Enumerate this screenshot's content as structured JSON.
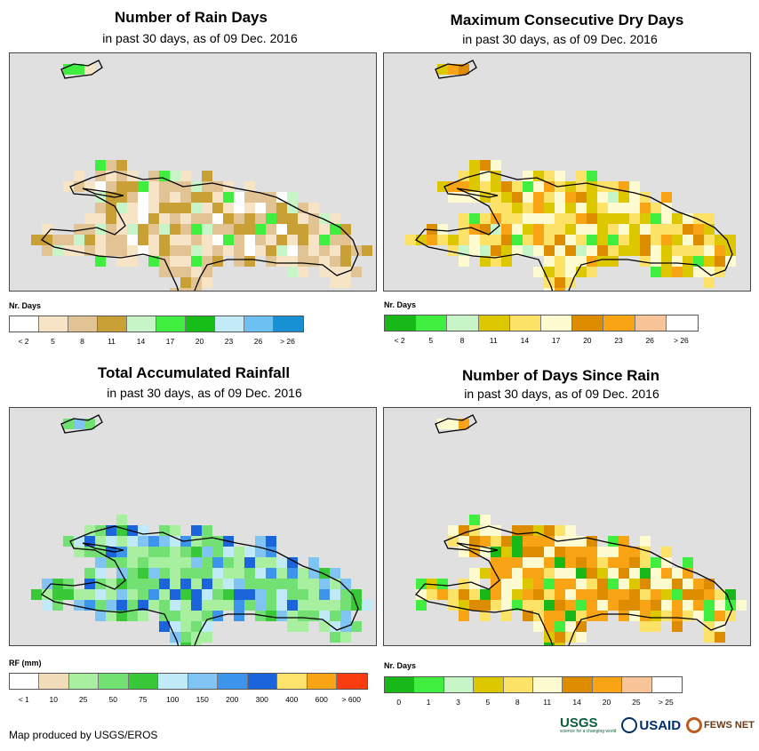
{
  "panels": [
    {
      "id": "rain-days",
      "title": "Number of Rain Days",
      "subtitle": "in past 30 days, as of 09 Dec. 2016",
      "legend_title": "Nr. Days",
      "legend_colors": [
        "#ffffff",
        "#f7e4c6",
        "#e2c494",
        "#c9a035",
        "#c8f5c8",
        "#40ee40",
        "#18be18",
        "#c4ecf8",
        "#6cc0f2",
        "#1890d4"
      ],
      "legend_ticks": [
        "< 2",
        "5",
        "8",
        "11",
        "14",
        "17",
        "20",
        "23",
        "26",
        "> 26"
      ]
    },
    {
      "id": "consecutive-dry-days",
      "title": "Maximum Consecutive Dry Days",
      "subtitle": "in past 30 days, as of 09 Dec. 2016",
      "legend_title": "Nr. Days",
      "legend_colors": [
        "#18b818",
        "#40ee40",
        "#c8f5c8",
        "#ddc800",
        "#fde268",
        "#fffbd0",
        "#dd8c00",
        "#f8a414",
        "#f8c498",
        "#ffffff"
      ],
      "legend_ticks": [
        "< 2",
        "5",
        "8",
        "11",
        "14",
        "17",
        "20",
        "23",
        "26",
        "> 26"
      ]
    },
    {
      "id": "total-rainfall",
      "title": "Total Accumulated Rainfall",
      "subtitle": "in past 30 days, as of 09 Dec. 2016",
      "legend_title": "RF (mm)",
      "legend_colors": [
        "#ffffff",
        "#f0dcb8",
        "#a8f0a0",
        "#72e072",
        "#38c838",
        "#c0eaf8",
        "#80c4f4",
        "#3c94ec",
        "#1c64dc",
        "#fde26c",
        "#f8a414",
        "#f83c10"
      ],
      "legend_ticks": [
        "< 1",
        "10",
        "25",
        "50",
        "75",
        "100",
        "150",
        "200",
        "300",
        "400",
        "600",
        "> 600"
      ]
    },
    {
      "id": "days-since-rain",
      "title": "Number of Days Since Rain",
      "subtitle": "in past 30 days, as of 09 Dec. 2016",
      "legend_title": "Nr. Days",
      "legend_colors": [
        "#18b818",
        "#40ee40",
        "#c8f5c8",
        "#ddc800",
        "#fde268",
        "#fffbd0",
        "#dd8c00",
        "#f8a414",
        "#f8c498",
        "#ffffff"
      ],
      "legend_ticks": [
        "0",
        "1",
        "3",
        "5",
        "8",
        "11",
        "14",
        "20",
        "25",
        "> 25"
      ]
    }
  ],
  "credit": "Map produced by USGS/EROS",
  "logos": {
    "usgs": "USGS",
    "usgs_tagline": "science for a changing world",
    "usaid": "USAID",
    "fews": "FEWS NET"
  }
}
